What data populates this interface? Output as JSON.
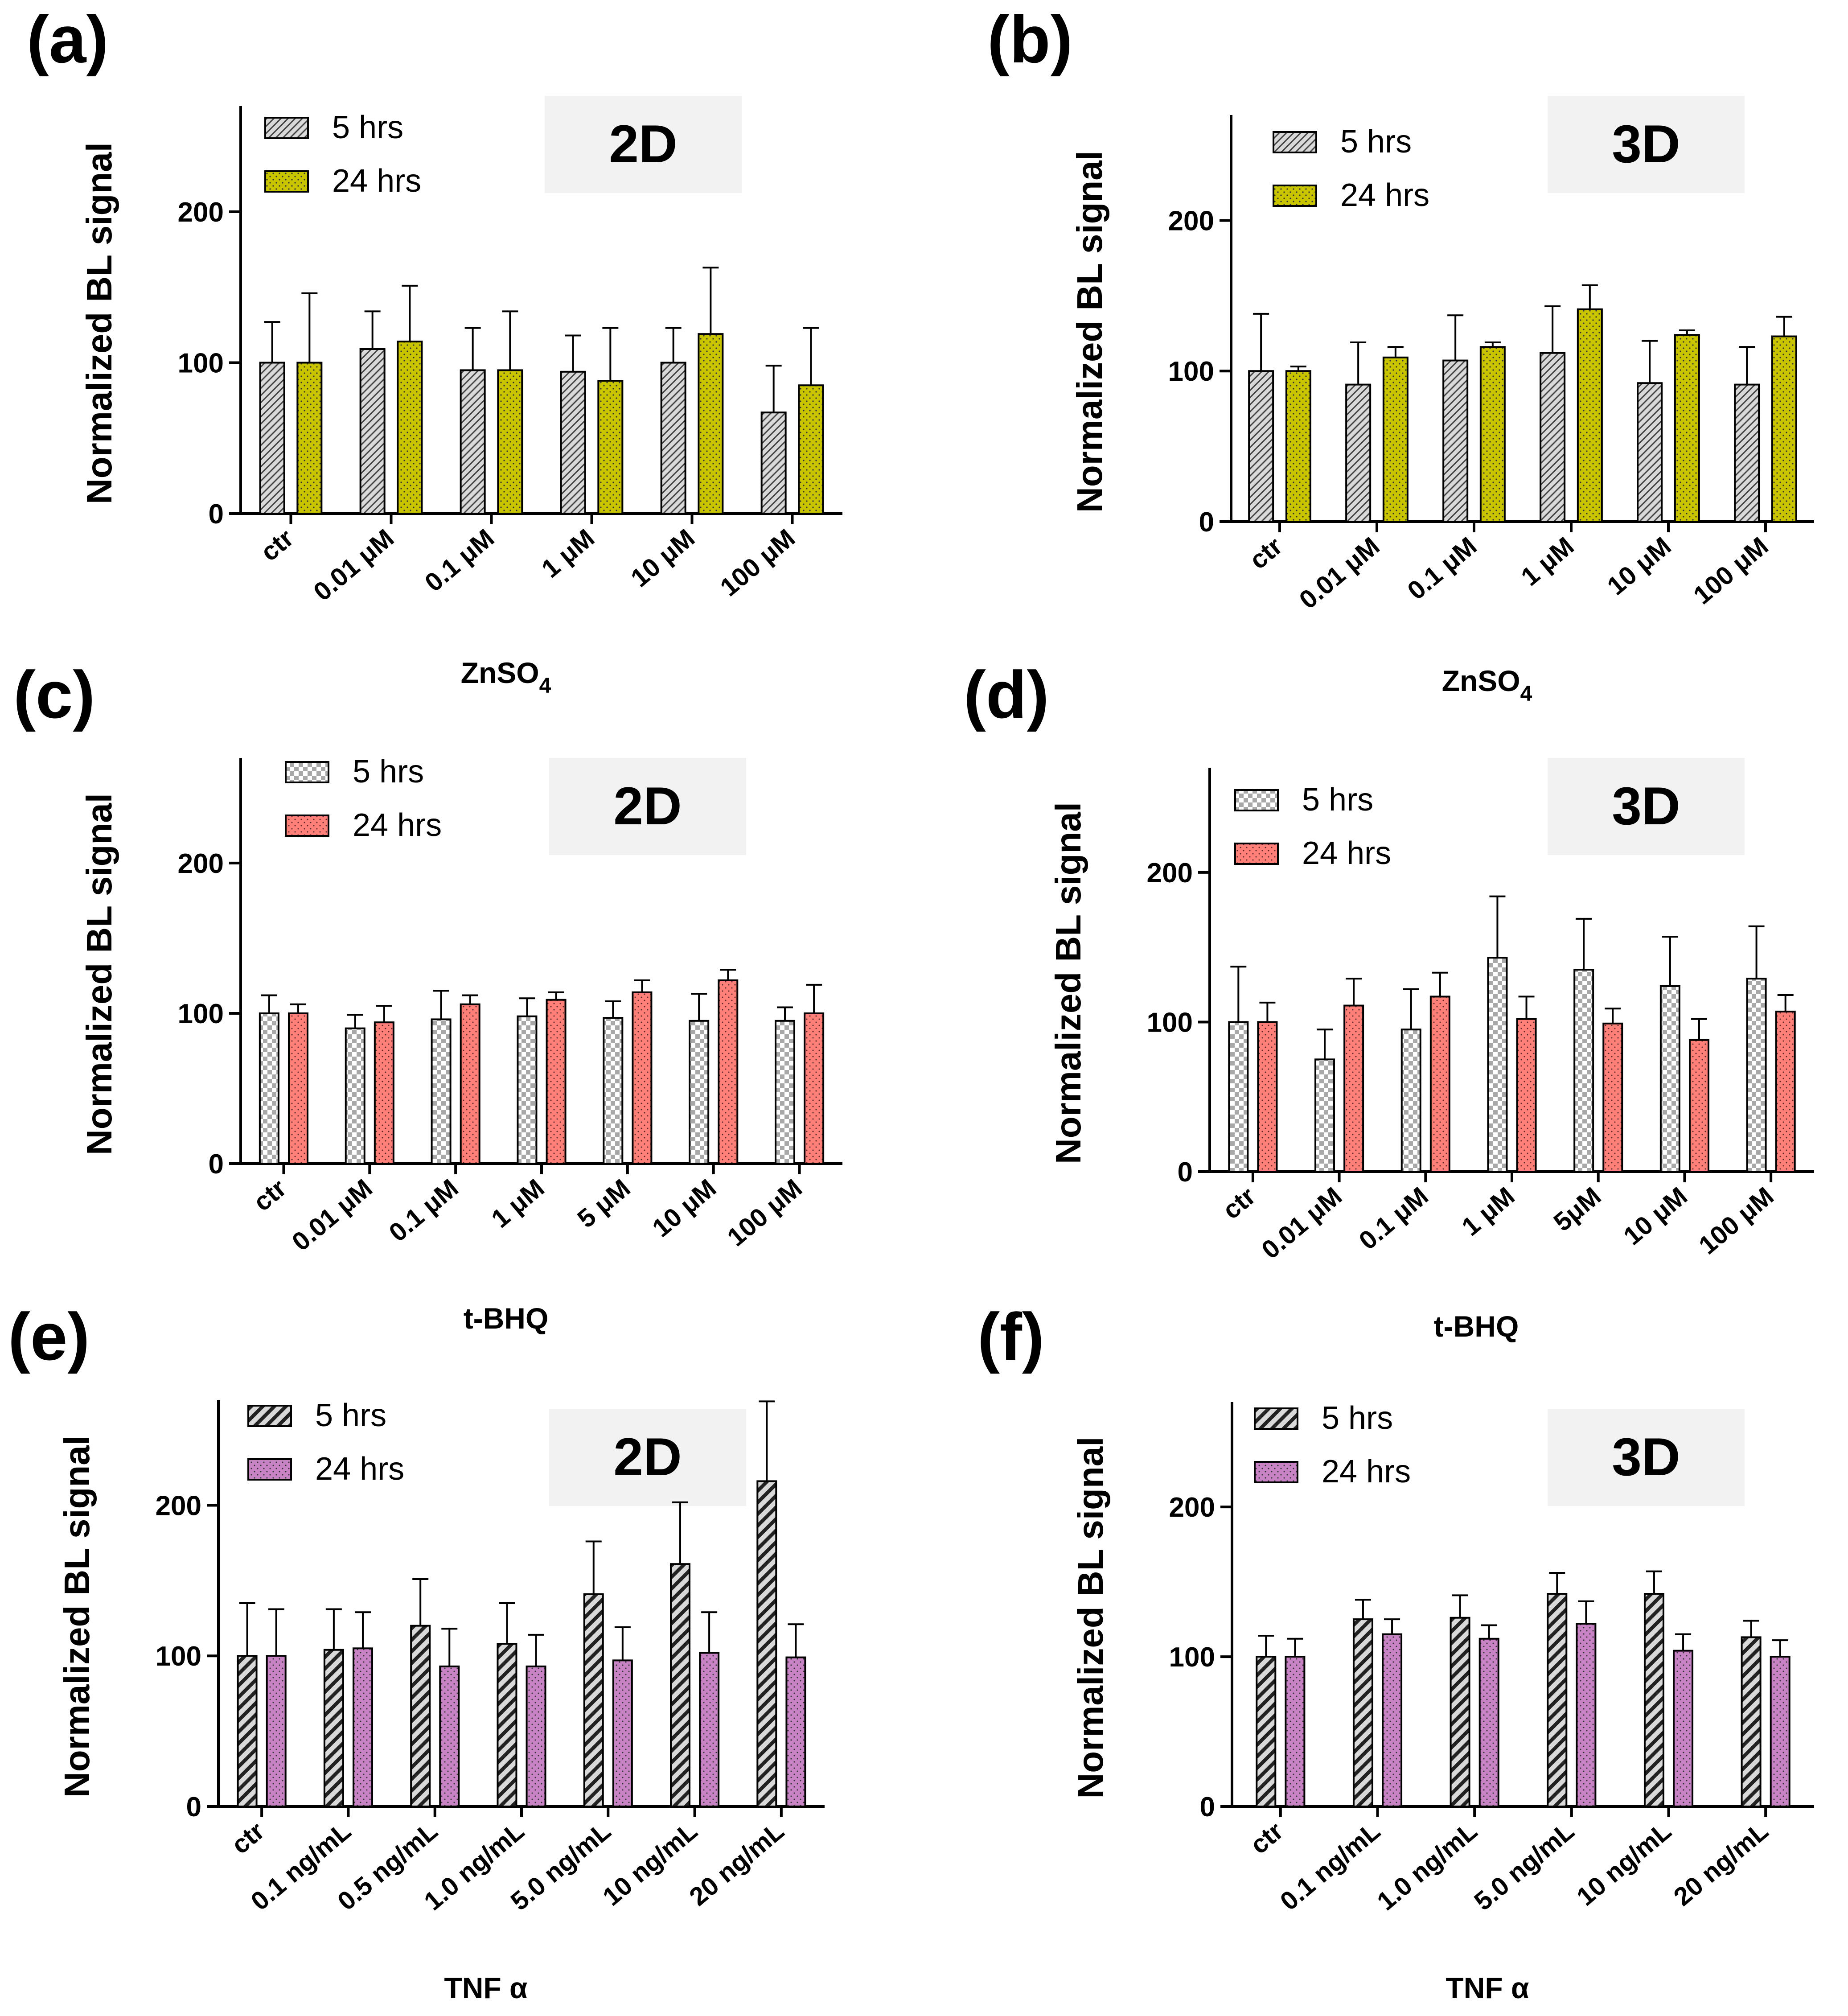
{
  "figure": {
    "patterns": {
      "zn_5h": "hatch",
      "zn_24h": "dots",
      "bhq_5h": "checker",
      "bhq_24h": "dots",
      "tnf_5h": "stripe",
      "tnf_24h": "dots"
    },
    "colors": {
      "zn_24h": "#c8c400",
      "bhq_24h": "#ff7f79",
      "tnf_24h": "#c783c3",
      "hatch_bg": "#d9d9d9",
      "badge_bg": "#f2f2f2",
      "axis": "#000000"
    }
  },
  "chart_data": [
    {
      "panel": "(a)",
      "type": "bar",
      "badge": "2D",
      "ylabel": "Normalized BL signal",
      "xlabel": "ZnSO",
      "xlabel_sub": "4",
      "ylim": [
        0,
        270
      ],
      "yticks": [
        "0",
        "100",
        "200"
      ],
      "categories": [
        "ctr",
        "0.01 μM",
        "0.1 μM",
        "1 μM",
        "10 μM",
        "100 μM"
      ],
      "legend": [
        "5 hrs",
        "24 hrs"
      ],
      "series": [
        {
          "name": "5 hrs",
          "values": [
            100,
            109,
            95,
            94,
            100,
            67
          ],
          "errors": [
            27,
            25,
            28,
            24,
            23,
            31
          ]
        },
        {
          "name": "24 hrs",
          "values": [
            100,
            114,
            95,
            88,
            119,
            85
          ],
          "errors": [
            46,
            37,
            39,
            35,
            44,
            38
          ]
        }
      ]
    },
    {
      "panel": "(b)",
      "type": "bar",
      "badge": "3D",
      "ylabel": "Normalized BL signal",
      "xlabel": "ZnSO",
      "xlabel_sub": "4",
      "ylim": [
        0,
        270
      ],
      "yticks": [
        "0",
        "100",
        "200"
      ],
      "categories": [
        "ctr",
        "0.01 μM",
        "0.1 μM",
        "1 μM",
        "10 μM",
        "100 μM"
      ],
      "legend": [
        "5 hrs",
        "24 hrs"
      ],
      "series": [
        {
          "name": "5 hrs",
          "values": [
            100,
            91,
            107,
            112,
            92,
            91
          ],
          "errors": [
            38,
            28,
            30,
            31,
            28,
            25
          ]
        },
        {
          "name": "24 hrs",
          "values": [
            100,
            109,
            116,
            141,
            124,
            123
          ],
          "errors": [
            3,
            7,
            3,
            16,
            3,
            13
          ]
        }
      ]
    },
    {
      "panel": "(c)",
      "type": "bar",
      "badge": "2D",
      "ylabel": "Normalized BL signal",
      "xlabel": "t-BHQ",
      "xlabel_sub": "",
      "ylim": [
        0,
        270
      ],
      "yticks": [
        "0",
        "100",
        "200"
      ],
      "categories": [
        "ctr",
        "0.01 μM",
        "0.1 μM",
        "1 μM",
        "5 μM",
        "10 μM",
        "100 μM"
      ],
      "legend": [
        "5 hrs",
        "24 hrs"
      ],
      "series": [
        {
          "name": "5 hrs",
          "values": [
            100,
            90,
            96,
            98,
            97,
            95,
            95
          ],
          "errors": [
            12,
            9,
            19,
            12,
            11,
            18,
            9
          ]
        },
        {
          "name": "24 hrs",
          "values": [
            100,
            94,
            106,
            109,
            114,
            122,
            100
          ],
          "errors": [
            6,
            11,
            6,
            5,
            8,
            7,
            19
          ]
        }
      ]
    },
    {
      "panel": "(d)",
      "type": "bar",
      "badge": "3D",
      "ylabel": "Normalized BL signal",
      "xlabel": "t-BHQ",
      "xlabel_sub": "",
      "ylim": [
        0,
        270
      ],
      "yticks": [
        "0",
        "100",
        "200"
      ],
      "categories": [
        "ctr",
        "0.01 μM",
        "0.1 μM",
        "1 μM",
        "5μM",
        "10 μM",
        "100 μM"
      ],
      "legend": [
        "5 hrs",
        "24 hrs"
      ],
      "series": [
        {
          "name": "5 hrs",
          "values": [
            100,
            75,
            95,
            143,
            135,
            124,
            129
          ],
          "errors": [
            37,
            20,
            27,
            41,
            34,
            33,
            35
          ]
        },
        {
          "name": "24 hrs",
          "values": [
            100,
            111,
            117,
            102,
            99,
            88,
            107
          ],
          "errors": [
            13,
            18,
            16,
            15,
            10,
            14,
            11
          ]
        }
      ]
    },
    {
      "panel": "(e)",
      "type": "bar",
      "badge": "2D",
      "ylabel": "Normalized BL signal",
      "xlabel": "TNF α",
      "xlabel_sub": "",
      "ylim": [
        0,
        270
      ],
      "yticks": [
        "0",
        "100",
        "200"
      ],
      "categories": [
        "ctr",
        "0.1 ng/mL",
        "0.5 ng/mL",
        "1.0 ng/mL",
        "5.0 ng/mL",
        "10 ng/mL",
        "20 ng/mL"
      ],
      "legend": [
        "5 hrs",
        "24 hrs"
      ],
      "series": [
        {
          "name": "5 hrs",
          "values": [
            100,
            104,
            120,
            108,
            141,
            161,
            216
          ],
          "errors": [
            35,
            27,
            31,
            27,
            35,
            41,
            53
          ]
        },
        {
          "name": "24 hrs",
          "values": [
            100,
            105,
            93,
            93,
            97,
            102,
            99
          ],
          "errors": [
            31,
            24,
            25,
            21,
            22,
            27,
            22
          ]
        }
      ]
    },
    {
      "panel": "(f)",
      "type": "bar",
      "badge": "3D",
      "ylabel": "Normalized BL signal",
      "xlabel": "TNF α",
      "xlabel_sub": "",
      "ylim": [
        0,
        270
      ],
      "yticks": [
        "0",
        "100",
        "200"
      ],
      "categories": [
        "ctr",
        "0.1 ng/mL",
        "1.0 ng/mL",
        "5.0 ng/mL",
        "10 ng/mL",
        "20 ng/mL"
      ],
      "legend": [
        "5 hrs",
        "24 hrs"
      ],
      "series": [
        {
          "name": "5 hrs",
          "values": [
            100,
            125,
            126,
            142,
            142,
            113
          ],
          "errors": [
            14,
            13,
            15,
            14,
            15,
            11
          ]
        },
        {
          "name": "24 hrs",
          "values": [
            100,
            115,
            112,
            122,
            104,
            100
          ],
          "errors": [
            12,
            10,
            9,
            15,
            11,
            11
          ]
        }
      ]
    }
  ]
}
